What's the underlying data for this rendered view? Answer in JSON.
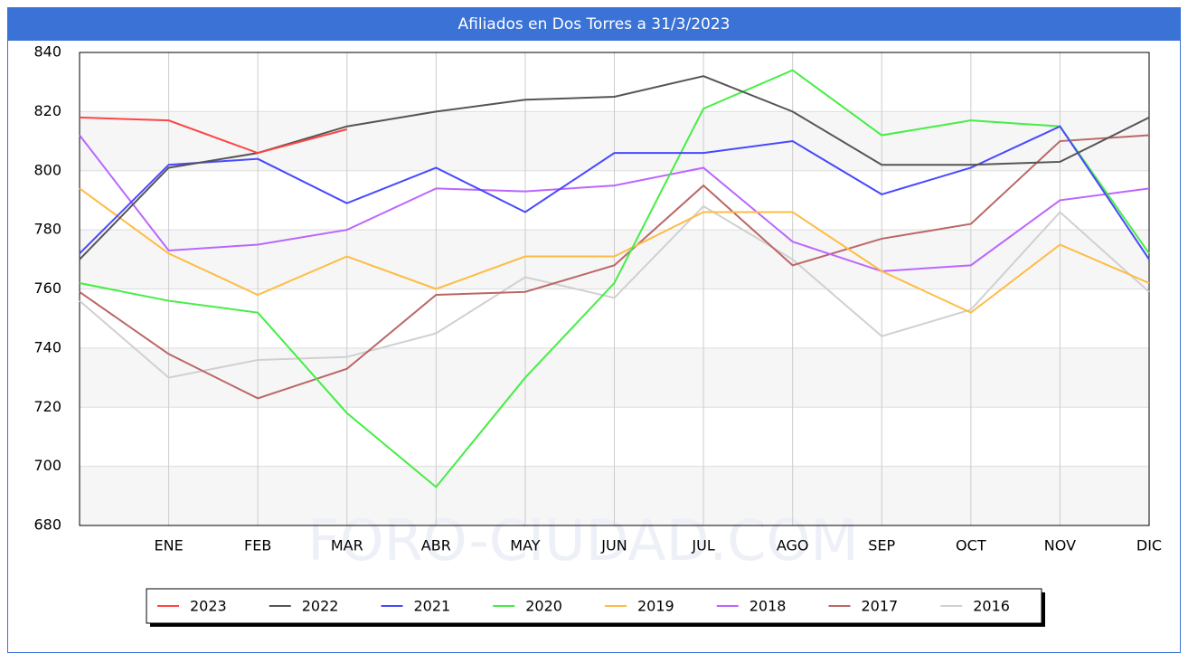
{
  "chart_data": {
    "type": "line",
    "title": "Afiliados en Dos Torres a 31/3/2023",
    "watermark": "FORO-CIUDAD.COM",
    "categories": [
      null,
      "ENE",
      "FEB",
      "MAR",
      "ABR",
      "MAY",
      "JUN",
      "JUL",
      "AGO",
      "SEP",
      "OCT",
      "NOV",
      "DIC"
    ],
    "ylim": [
      680,
      840
    ],
    "yticks": [
      680,
      700,
      720,
      740,
      760,
      780,
      800,
      820,
      840
    ],
    "grid": true,
    "legend": "bottom",
    "series": [
      {
        "name": "2023",
        "color": "#ff4444",
        "values": [
          818,
          817,
          806,
          814,
          null,
          null,
          null,
          null,
          null,
          null,
          null,
          null,
          null
        ]
      },
      {
        "name": "2022",
        "color": "#555555",
        "values": [
          770,
          801,
          806,
          815,
          820,
          824,
          825,
          832,
          820,
          802,
          802,
          803,
          818
        ]
      },
      {
        "name": "2021",
        "color": "#4848ff",
        "values": [
          772,
          802,
          804,
          789,
          801,
          786,
          806,
          806,
          810,
          792,
          801,
          815,
          770
        ]
      },
      {
        "name": "2020",
        "color": "#44ee44",
        "values": [
          762,
          756,
          752,
          718,
          693,
          730,
          762,
          821,
          834,
          812,
          817,
          815,
          772
        ]
      },
      {
        "name": "2019",
        "color": "#ffbb44",
        "values": [
          794,
          772,
          758,
          771,
          760,
          771,
          771,
          786,
          786,
          766,
          752,
          775,
          762
        ]
      },
      {
        "name": "2018",
        "color": "#bb66ff",
        "values": [
          812,
          773,
          775,
          780,
          794,
          793,
          795,
          801,
          776,
          766,
          768,
          790,
          794
        ]
      },
      {
        "name": "2017",
        "color": "#bb6666",
        "values": [
          759,
          738,
          723,
          733,
          758,
          759,
          768,
          795,
          768,
          777,
          782,
          810,
          812
        ]
      },
      {
        "name": "2016",
        "color": "#d0d0d0",
        "values": [
          756,
          730,
          736,
          737,
          745,
          764,
          757,
          788,
          770,
          744,
          753,
          786,
          759
        ]
      }
    ]
  }
}
